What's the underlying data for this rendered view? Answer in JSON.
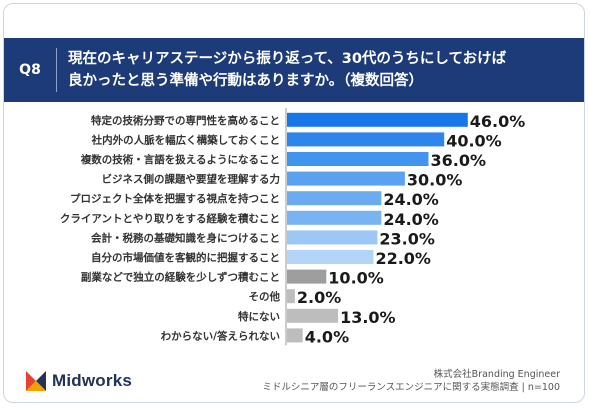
{
  "header": {
    "question_id": "Q8",
    "question_text": "現在のキャリアステージから振り返って、30代のうちにしておけば\n良かったと思う準備や行動はありますか。（複数回答）"
  },
  "chart_data": {
    "type": "bar",
    "orientation": "horizontal",
    "categories": [
      "特定の技術分野での専門性を高めること",
      "社内外の人脈を幅広く構築しておくこと",
      "複数の技術・言語を扱えるようになること",
      "ビジネス側の課題や要望を理解する力",
      "プロジェクト全体を把握する視点を持つこと",
      "クライアントとやり取りをする経験を積むこと",
      "会計・税務の基礎知識を身につけること",
      "自分の市場価値を客観的に把握すること",
      "副業などで独立の経験を少しずつ積むこと",
      "その他",
      "特にない",
      "わからない/答えられない"
    ],
    "values": [
      46.0,
      40.0,
      36.0,
      30.0,
      24.0,
      24.0,
      23.0,
      22.0,
      10.0,
      2.0,
      13.0,
      4.0
    ],
    "value_labels": [
      "46.0%",
      "40.0%",
      "36.0%",
      "30.0%",
      "24.0%",
      "24.0%",
      "23.0%",
      "22.0%",
      "10.0%",
      "2.0%",
      "13.0%",
      "4.0%"
    ],
    "bar_colors": [
      "#1877e8",
      "#2e86ec",
      "#4394ee",
      "#5aa2f0",
      "#6aabf1",
      "#78b3f2",
      "#9cc8f6",
      "#b3d6f8",
      "#9e9e9e",
      "#bdbdbd",
      "#bdbdbd",
      "#bdbdbd"
    ],
    "xlim": [
      0,
      50
    ],
    "grid": false,
    "legend": "none"
  },
  "footer": {
    "brand": "Midworks",
    "source_line1": "株式会社Branding Engineer",
    "source_line2": "ミドルシニア層のフリーランスエンジニアに関する実態調査 | n=100"
  },
  "colors": {
    "header_bg": "#1d3b78",
    "logo_red": "#e8412c",
    "logo_navy": "#223355"
  }
}
